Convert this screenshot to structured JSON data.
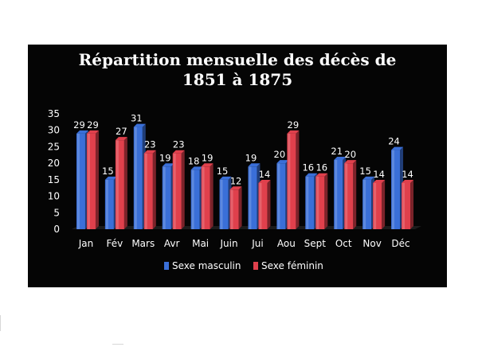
{
  "chart_data": {
    "type": "bar",
    "title": [
      "Répartition mensuelle des décès de",
      "1851 à 1875"
    ],
    "categories": [
      "Jan",
      "Fév",
      "Mars",
      "Avr",
      "Mai",
      "Juin",
      "Jui",
      "Aou",
      "Sept",
      "Oct",
      "Nov",
      "Déc"
    ],
    "series": [
      {
        "name": "Sexe masculin",
        "color": "#3a6fd8",
        "values": [
          29,
          15,
          31,
          19,
          18,
          15,
          19,
          20,
          16,
          21,
          15,
          24
        ]
      },
      {
        "name": "Sexe féminin",
        "color": "#e0404c",
        "values": [
          29,
          27,
          23,
          23,
          19,
          12,
          14,
          29,
          16,
          20,
          14,
          14
        ]
      }
    ],
    "ylim": [
      0,
      35
    ],
    "yticks": [
      0,
      5,
      10,
      15,
      20,
      25,
      30,
      35
    ],
    "grid": false,
    "legend": "bottom",
    "xlabel": "",
    "ylabel": ""
  }
}
